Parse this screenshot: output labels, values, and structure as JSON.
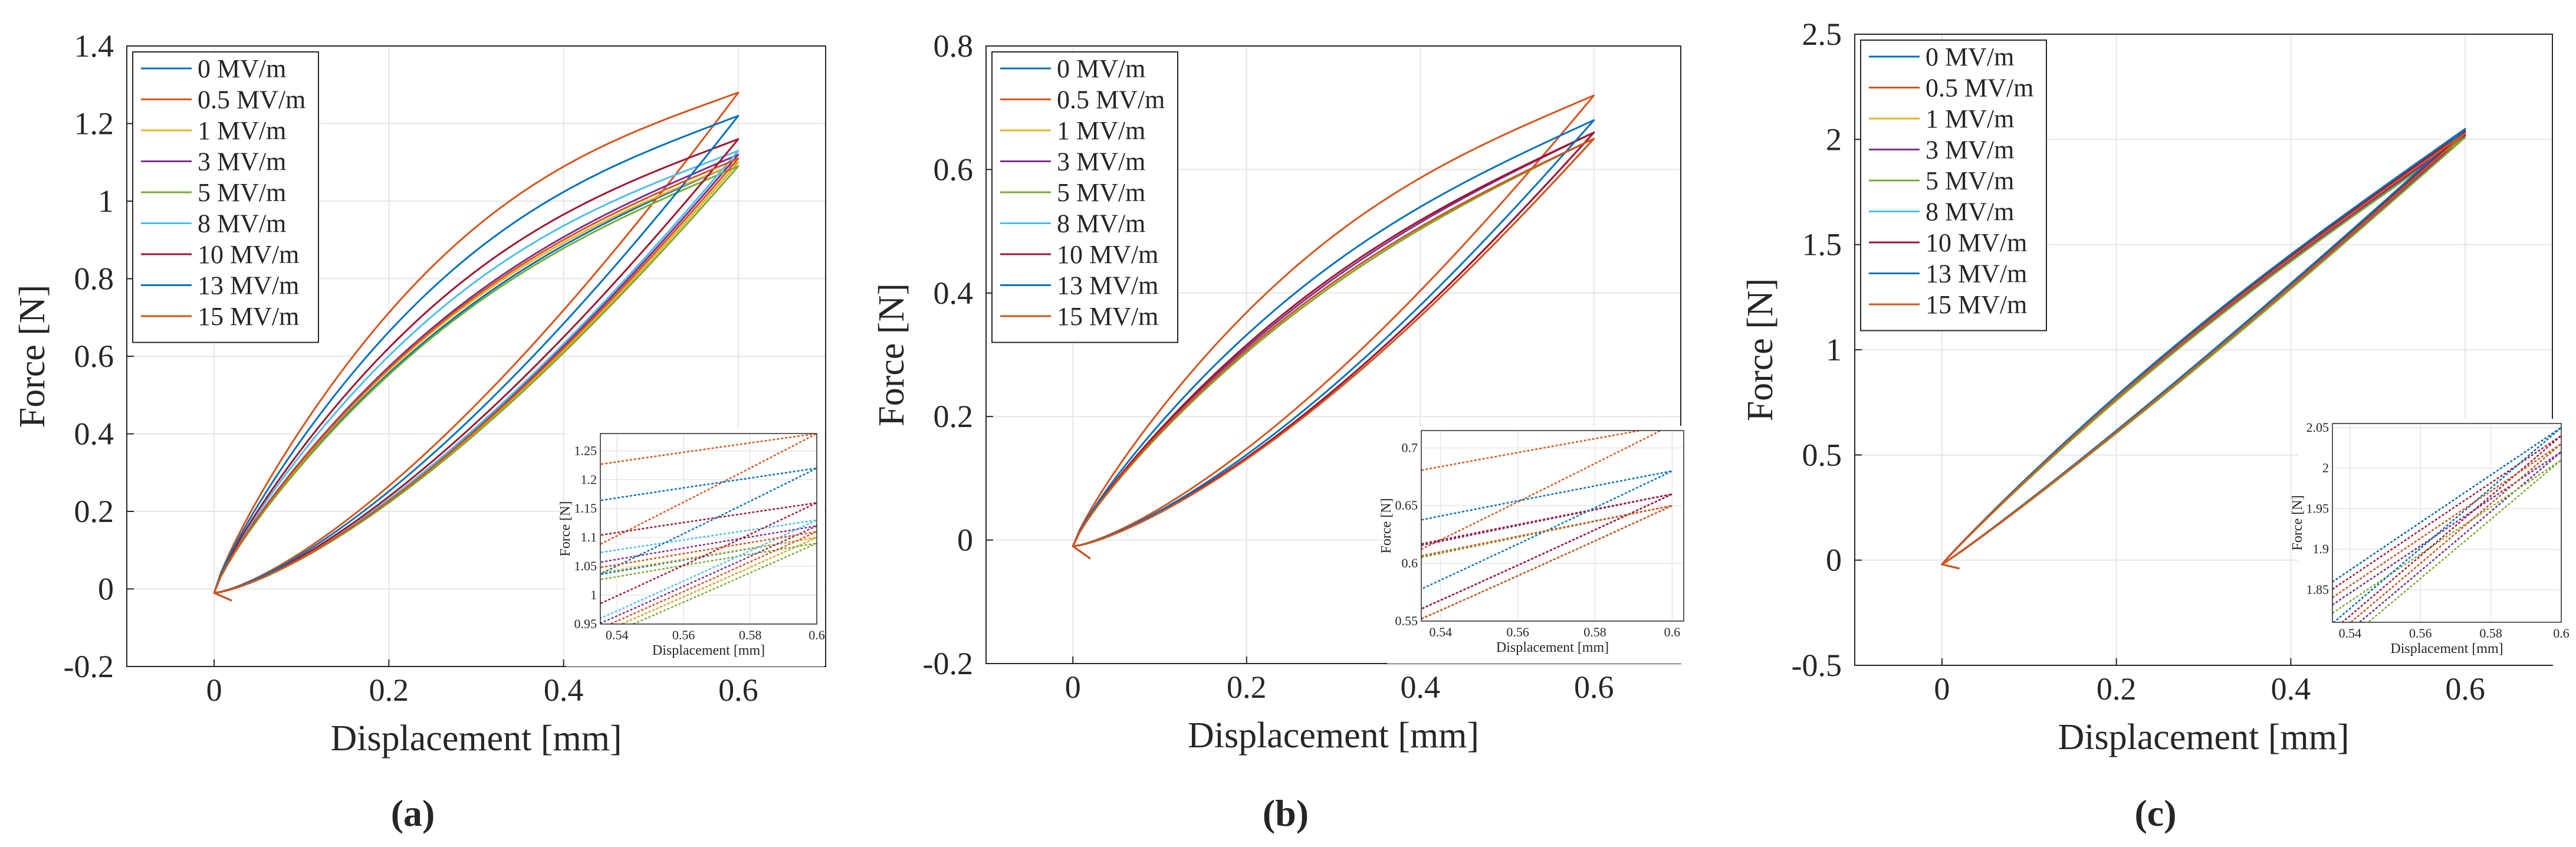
{
  "figure": {
    "legend_labels": [
      "0 MV/m",
      "0.5 MV/m",
      "1 MV/m",
      "3 MV/m",
      "5 MV/m",
      "8 MV/m",
      "10 MV/m",
      "13 MV/m",
      "15 MV/m"
    ],
    "series_colors": [
      "#0072BD",
      "#D95319",
      "#EDB120",
      "#7E2F8E",
      "#77AC30",
      "#4DBEEE",
      "#A2142F",
      "#0072BD",
      "#D95319"
    ]
  },
  "chart_data": [
    {
      "type": "line",
      "panel_label": "(a)",
      "xlabel": "Displacement [mm]",
      "ylabel": "Force [N]",
      "xlim": [
        -0.1,
        0.7
      ],
      "ylim": [
        -0.2,
        1.4
      ],
      "xticks": [
        0,
        0.2,
        0.4,
        0.6
      ],
      "xtick_labels": [
        "0",
        "0.2",
        "0.4",
        "0.6"
      ],
      "yticks": [
        -0.2,
        0,
        0.2,
        0.4,
        0.6,
        0.8,
        1,
        1.2,
        1.4
      ],
      "ytick_labels": [
        "-0.2",
        "0",
        "0.2",
        "0.4",
        "0.6",
        "0.8",
        "1",
        "1.2",
        "1.4"
      ],
      "grid": true,
      "legend_location": "top-left",
      "series": [
        {
          "name": "0 MV/m",
          "x_range": [
            0,
            0.6
          ],
          "f_min": -0.01,
          "f_max": 1.1,
          "upper_offset": 0.12,
          "upper_shape": 0.78,
          "lower_shape": 1.35
        },
        {
          "name": "0.5 MV/m",
          "x_range": [
            0,
            0.6
          ],
          "f_min": -0.01,
          "f_max": 1.28,
          "upper_offset": 0.22,
          "upper_shape": 0.78,
          "lower_shape": 1.35
        },
        {
          "name": "1 MV/m",
          "x_range": [
            0,
            0.6
          ],
          "f_min": -0.01,
          "f_max": 1.1,
          "upper_offset": 0.13,
          "upper_shape": 0.78,
          "lower_shape": 1.35
        },
        {
          "name": "3 MV/m",
          "x_range": [
            0,
            0.6
          ],
          "f_min": -0.01,
          "f_max": 1.12,
          "upper_offset": 0.13,
          "upper_shape": 0.78,
          "lower_shape": 1.35
        },
        {
          "name": "5 MV/m",
          "x_range": [
            0,
            0.6
          ],
          "f_min": -0.01,
          "f_max": 1.09,
          "upper_offset": 0.12,
          "upper_shape": 0.78,
          "lower_shape": 1.35
        },
        {
          "name": "8 MV/m",
          "x_range": [
            0,
            0.6
          ],
          "f_min": -0.01,
          "f_max": 1.13,
          "upper_offset": 0.16,
          "upper_shape": 0.78,
          "lower_shape": 1.35
        },
        {
          "name": "10 MV/m",
          "x_range": [
            0,
            0.6
          ],
          "f_min": -0.01,
          "f_max": 1.16,
          "upper_offset": 0.17,
          "upper_shape": 0.78,
          "lower_shape": 1.35
        },
        {
          "name": "13 MV/m",
          "x_range": [
            0,
            0.6
          ],
          "f_min": -0.01,
          "f_max": 1.22,
          "upper_offset": 0.19,
          "upper_shape": 0.78,
          "lower_shape": 1.35
        },
        {
          "name": "15 MV/m",
          "x_range": [
            0,
            0.6
          ],
          "f_min": -0.01,
          "f_max": 1.11,
          "upper_offset": 0.13,
          "upper_shape": 0.78,
          "lower_shape": 1.35
        }
      ],
      "inset": {
        "xlabel": "Displacement [mm]",
        "ylabel": "Force [N]",
        "xlim": [
          0.535,
          0.6
        ],
        "ylim": [
          0.95,
          1.28
        ],
        "xticks": [
          0.54,
          0.56,
          0.58,
          0.6
        ],
        "xtick_labels": [
          "0.54",
          "0.56",
          "0.58",
          "0.6"
        ],
        "yticks": [
          0.95,
          1,
          1.05,
          1.1,
          1.15,
          1.2,
          1.25
        ],
        "ytick_labels": [
          "0.95",
          "1",
          "1.05",
          "1.1",
          "1.15",
          "1.2",
          "1.25"
        ]
      }
    },
    {
      "type": "line",
      "panel_label": "(b)",
      "xlabel": "Displacement [mm]",
      "ylabel": "Force [N]",
      "xlim": [
        -0.1,
        0.7
      ],
      "ylim": [
        -0.2,
        0.8
      ],
      "xticks": [
        0,
        0.2,
        0.4,
        0.6
      ],
      "xtick_labels": [
        "0",
        "0.2",
        "0.4",
        "0.6"
      ],
      "yticks": [
        -0.2,
        0,
        0.2,
        0.4,
        0.6,
        0.8
      ],
      "ytick_labels": [
        "-0.2",
        "0",
        "0.2",
        "0.4",
        "0.6",
        "0.8"
      ],
      "grid": true,
      "legend_location": "top-left",
      "series": [
        {
          "name": "0 MV/m",
          "x_range": [
            0,
            0.6
          ],
          "f_min": -0.01,
          "f_max": 0.65,
          "upper_offset": 0.055,
          "upper_shape": 0.8,
          "lower_shape": 1.3
        },
        {
          "name": "0.5 MV/m",
          "x_range": [
            0,
            0.6
          ],
          "f_min": -0.01,
          "f_max": 0.72,
          "upper_offset": 0.095,
          "upper_shape": 0.8,
          "lower_shape": 1.3
        },
        {
          "name": "1 MV/m",
          "x_range": [
            0,
            0.6
          ],
          "f_min": -0.01,
          "f_max": 0.65,
          "upper_offset": 0.055,
          "upper_shape": 0.8,
          "lower_shape": 1.3
        },
        {
          "name": "3 MV/m",
          "x_range": [
            0,
            0.6
          ],
          "f_min": -0.01,
          "f_max": 0.66,
          "upper_offset": 0.055,
          "upper_shape": 0.8,
          "lower_shape": 1.3
        },
        {
          "name": "5 MV/m",
          "x_range": [
            0,
            0.6
          ],
          "f_min": -0.01,
          "f_max": 0.65,
          "upper_offset": 0.05,
          "upper_shape": 0.8,
          "lower_shape": 1.3
        },
        {
          "name": "8 MV/m",
          "x_range": [
            0,
            0.6
          ],
          "f_min": -0.01,
          "f_max": 0.65,
          "upper_offset": 0.055,
          "upper_shape": 0.8,
          "lower_shape": 1.3
        },
        {
          "name": "10 MV/m",
          "x_range": [
            0,
            0.6
          ],
          "f_min": -0.01,
          "f_max": 0.66,
          "upper_offset": 0.06,
          "upper_shape": 0.8,
          "lower_shape": 1.3
        },
        {
          "name": "13 MV/m",
          "x_range": [
            0,
            0.6
          ],
          "f_min": -0.01,
          "f_max": 0.68,
          "upper_offset": 0.07,
          "upper_shape": 0.8,
          "lower_shape": 1.3
        },
        {
          "name": "15 MV/m",
          "x_range": [
            0,
            0.6
          ],
          "f_min": -0.01,
          "f_max": 0.65,
          "upper_offset": 0.055,
          "upper_shape": 0.8,
          "lower_shape": 1.3
        }
      ],
      "inset": {
        "xlabel": "Displacement [mm]",
        "ylabel": "Force [N]",
        "xlim": [
          0.535,
          0.603
        ],
        "ylim": [
          0.55,
          0.715
        ],
        "xticks": [
          0.54,
          0.56,
          0.58,
          0.6
        ],
        "xtick_labels": [
          "0.54",
          "0.56",
          "0.58",
          "0.6"
        ],
        "yticks": [
          0.55,
          0.6,
          0.65,
          0.7
        ],
        "ytick_labels": [
          "0.55",
          "0.6",
          "0.65",
          "0.7"
        ]
      }
    },
    {
      "type": "line",
      "panel_label": "(c)",
      "xlabel": "Displacement [mm]",
      "ylabel": "Force [N]",
      "xlim": [
        -0.1,
        0.7
      ],
      "ylim": [
        -0.5,
        2.5
      ],
      "xticks": [
        0,
        0.2,
        0.4,
        0.6
      ],
      "xtick_labels": [
        "0",
        "0.2",
        "0.4",
        "0.6"
      ],
      "yticks": [
        -0.5,
        0,
        0.5,
        1,
        1.5,
        2,
        2.5
      ],
      "ytick_labels": [
        "-0.5",
        "0",
        "0.5",
        "1",
        "1.5",
        "2",
        "2.5"
      ],
      "grid": true,
      "legend_location": "top-left",
      "series": [
        {
          "name": "0 MV/m",
          "x_range": [
            0,
            0.6
          ],
          "f_min": -0.02,
          "f_max": 2.02,
          "upper_offset": 0.085,
          "upper_shape": 0.95,
          "lower_shape": 1.05
        },
        {
          "name": "0.5 MV/m",
          "x_range": [
            0,
            0.6
          ],
          "f_min": -0.02,
          "f_max": 2.05,
          "upper_offset": 0.09,
          "upper_shape": 0.95,
          "lower_shape": 1.05
        },
        {
          "name": "1 MV/m",
          "x_range": [
            0,
            0.6
          ],
          "f_min": -0.02,
          "f_max": 2.03,
          "upper_offset": 0.085,
          "upper_shape": 0.95,
          "lower_shape": 1.05
        },
        {
          "name": "3 MV/m",
          "x_range": [
            0,
            0.6
          ],
          "f_min": -0.02,
          "f_max": 2.02,
          "upper_offset": 0.085,
          "upper_shape": 0.95,
          "lower_shape": 1.05
        },
        {
          "name": "5 MV/m",
          "x_range": [
            0,
            0.6
          ],
          "f_min": -0.02,
          "f_max": 2.01,
          "upper_offset": 0.08,
          "upper_shape": 0.95,
          "lower_shape": 1.05
        },
        {
          "name": "8 MV/m",
          "x_range": [
            0,
            0.6
          ],
          "f_min": -0.02,
          "f_max": 2.03,
          "upper_offset": 0.085,
          "upper_shape": 0.95,
          "lower_shape": 1.05
        },
        {
          "name": "10 MV/m",
          "x_range": [
            0,
            0.6
          ],
          "f_min": -0.02,
          "f_max": 2.04,
          "upper_offset": 0.09,
          "upper_shape": 0.95,
          "lower_shape": 1.05
        },
        {
          "name": "13 MV/m",
          "x_range": [
            0,
            0.6
          ],
          "f_min": -0.02,
          "f_max": 2.05,
          "upper_offset": 0.09,
          "upper_shape": 0.95,
          "lower_shape": 1.05
        },
        {
          "name": "15 MV/m",
          "x_range": [
            0,
            0.6
          ],
          "f_min": -0.02,
          "f_max": 2.03,
          "upper_offset": 0.085,
          "upper_shape": 0.95,
          "lower_shape": 1.05
        }
      ],
      "inset": {
        "xlabel": "Displacement [mm]",
        "ylabel": "Force [N]",
        "xlim": [
          0.535,
          0.6
        ],
        "ylim": [
          1.81,
          2.055
        ],
        "xticks": [
          0.54,
          0.56,
          0.58,
          0.6
        ],
        "xtick_labels": [
          "0.54",
          "0.56",
          "0.58",
          "0.6"
        ],
        "yticks": [
          1.85,
          1.9,
          1.95,
          2,
          2.05
        ],
        "ytick_labels": [
          "1.85",
          "1.9",
          "1.95",
          "2",
          "2.05"
        ]
      }
    }
  ]
}
